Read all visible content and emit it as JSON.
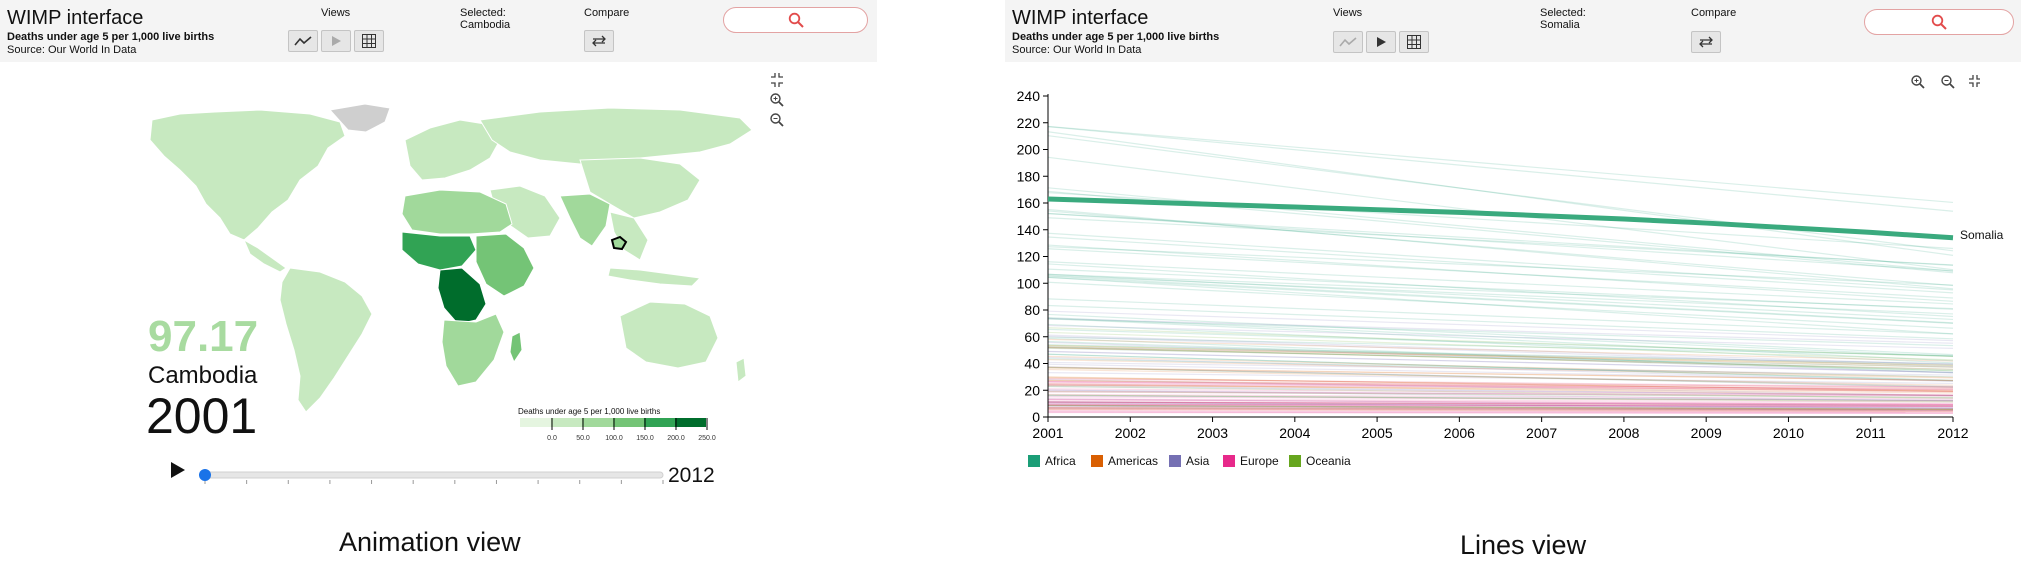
{
  "animation_view": {
    "app_title": "WIMP interface",
    "subtitle": "Deaths under age 5 per 1,000 live births",
    "source": "Source: Our World In Data",
    "views_label": "Views",
    "selected_label": "Selected:",
    "selected_value": "Cambodia",
    "compare_label": "Compare",
    "big_value": "97.17",
    "big_country": "Cambodia",
    "big_year": "2001",
    "slider_end_year": "2012",
    "slider_progress": 0,
    "map_legend": {
      "title": "Deaths under age 5 per 1,000 live births",
      "ticks": [
        "0.0",
        "50.0",
        "100.0",
        "150.0",
        "200.0",
        "250.0"
      ],
      "colors": [
        "#e5f5e0",
        "#c7e9c0",
        "#a1d99b",
        "#74c476",
        "#31a354",
        "#006d2c"
      ]
    },
    "caption": "Animation view"
  },
  "lines_view": {
    "app_title": "WIMP interface",
    "subtitle": "Deaths under age 5 per 1,000 live births",
    "source": "Source: Our World In Data",
    "views_label": "Views",
    "selected_label": "Selected:",
    "selected_value": "Somalia",
    "compare_label": "Compare",
    "caption": "Lines view"
  },
  "chart_data": {
    "type": "line",
    "x": [
      2001,
      2002,
      2003,
      2004,
      2005,
      2006,
      2007,
      2008,
      2009,
      2010,
      2011,
      2012
    ],
    "ylim": [
      0,
      240
    ],
    "yticks": [
      "0",
      "20",
      "40",
      "60",
      "80",
      "100",
      "120",
      "140",
      "160",
      "180",
      "200",
      "220",
      "240"
    ],
    "xticks": [
      "2001",
      "2002",
      "2003",
      "2004",
      "2005",
      "2006",
      "2007",
      "2008",
      "2009",
      "2010",
      "2011",
      "2012"
    ],
    "highlight": {
      "name": "Somalia",
      "color": "#3aaa7e",
      "values": [
        163,
        161,
        159,
        157,
        155,
        153,
        150.5,
        148,
        145,
        141.5,
        138,
        134
      ]
    },
    "legend": [
      {
        "name": "Africa",
        "color": "#1b9e77"
      },
      {
        "name": "Americas",
        "color": "#d95f02"
      },
      {
        "name": "Asia",
        "color": "#7570b3"
      },
      {
        "name": "Europe",
        "color": "#e7298a"
      },
      {
        "name": "Oceania",
        "color": "#66a61e"
      }
    ],
    "legend_position": "bottom-left",
    "grid": false
  }
}
